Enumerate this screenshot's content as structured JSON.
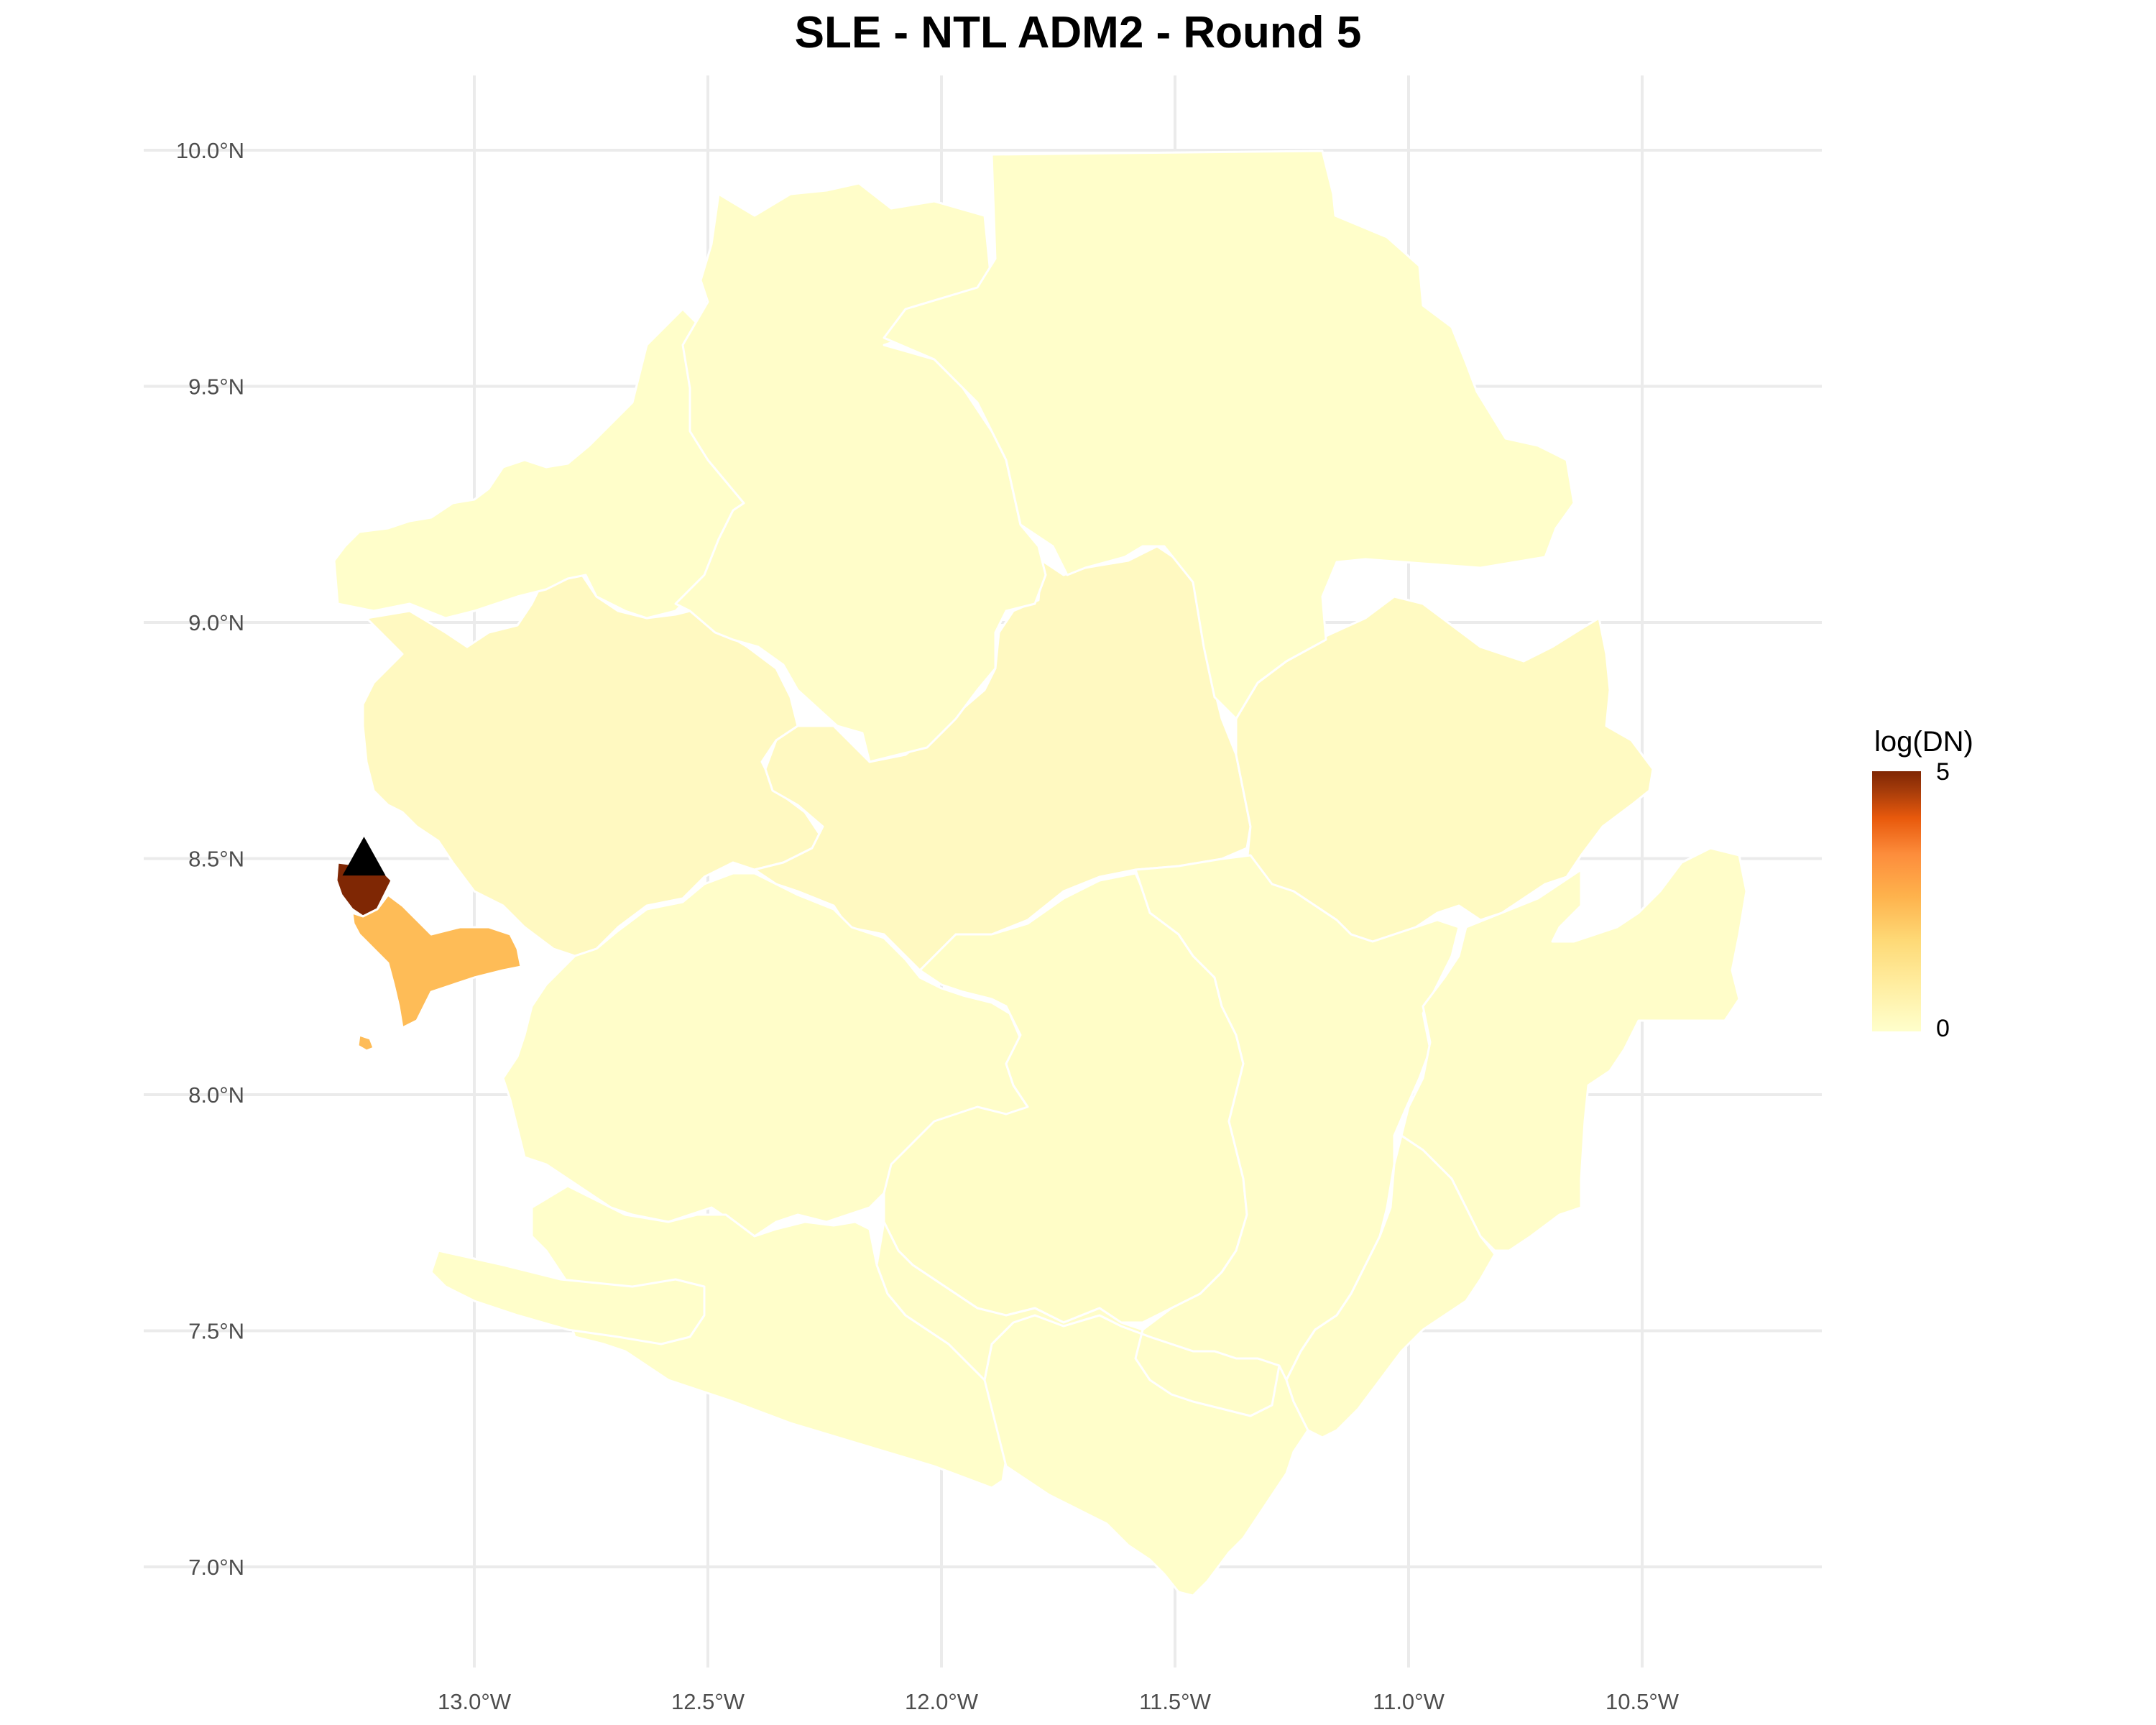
{
  "title": "SLE - NTL ADM2 - Round 5",
  "legend": {
    "title": "log(DN)",
    "max_label": "5",
    "min_label": "0",
    "scale_colors": [
      "#ffffcc",
      "#fed976",
      "#feb24c",
      "#fd8d3c",
      "#e8590c",
      "#7f2704"
    ]
  },
  "chart_data": {
    "type": "choropleth-map",
    "title": "SLE - NTL ADM2 - Round 5",
    "country": "SLE",
    "color_scale": {
      "name": "log(DN)",
      "min": 0,
      "max": 5
    },
    "x_axis": {
      "ticks": [
        -13.0,
        -12.5,
        -12.0,
        -11.5,
        -11.0,
        -10.5
      ],
      "tick_labels": [
        "13.0°W",
        "12.5°W",
        "12.0°W",
        "11.5°W",
        "11.0°W",
        "10.5°W"
      ]
    },
    "y_axis": {
      "ticks": [
        7.0,
        7.5,
        8.0,
        8.5,
        9.0,
        9.5,
        10.0
      ],
      "tick_labels": [
        "7.0°N",
        "7.5°N",
        "8.0°N",
        "8.5°N",
        "9.0°N",
        "9.5°N",
        "10.0°N"
      ]
    },
    "grid": true,
    "legend_position": "right",
    "regions": [
      {
        "id": "capital-west",
        "value": 5.0
      },
      {
        "id": "western-rural",
        "value": 2.3
      },
      {
        "id": "port-loko",
        "value": 0.35
      },
      {
        "id": "tonkolili",
        "value": 0.35
      },
      {
        "id": "kono",
        "value": 0.3
      },
      {
        "id": "kambia",
        "value": 0.05
      },
      {
        "id": "bombali",
        "value": 0.1
      },
      {
        "id": "koinadugu",
        "value": 0.05
      },
      {
        "id": "moyamba",
        "value": 0.1
      },
      {
        "id": "bo",
        "value": 0.15
      },
      {
        "id": "kenema",
        "value": 0.1
      },
      {
        "id": "kailahun",
        "value": 0.1
      },
      {
        "id": "bonthe",
        "value": 0.05
      },
      {
        "id": "pujehun",
        "value": 0.05
      },
      {
        "id": "bo-south",
        "value": 0.1
      },
      {
        "id": "kenema-south",
        "value": 0.1
      }
    ],
    "point_marker": {
      "shape": "triangle",
      "lon": -13.23,
      "lat": 8.49,
      "color": "#000000"
    }
  }
}
